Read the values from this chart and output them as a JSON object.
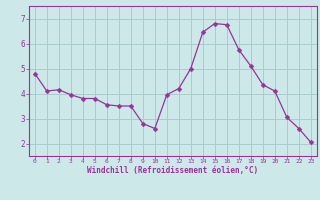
{
  "x": [
    0,
    1,
    2,
    3,
    4,
    5,
    6,
    7,
    8,
    9,
    10,
    11,
    12,
    13,
    14,
    15,
    16,
    17,
    18,
    19,
    20,
    21,
    22,
    23
  ],
  "y": [
    4.8,
    4.1,
    4.15,
    3.95,
    3.8,
    3.8,
    3.55,
    3.5,
    3.5,
    2.8,
    2.6,
    3.95,
    4.2,
    5.0,
    6.45,
    6.8,
    6.75,
    5.75,
    5.1,
    4.35,
    4.1,
    3.05,
    2.6,
    2.05
  ],
  "line_color": "#993399",
  "marker_color": "#993399",
  "bg_color": "#cce8e8",
  "grid_color": "#aacccc",
  "axis_color": "#993399",
  "tick_color": "#993399",
  "xlabel": "Windchill (Refroidissement éolien,°C)",
  "ylim": [
    1.5,
    7.5
  ],
  "xlim": [
    -0.5,
    23.5
  ],
  "yticks": [
    2,
    3,
    4,
    5,
    6,
    7
  ],
  "xticks": [
    0,
    1,
    2,
    3,
    4,
    5,
    6,
    7,
    8,
    9,
    10,
    11,
    12,
    13,
    14,
    15,
    16,
    17,
    18,
    19,
    20,
    21,
    22,
    23
  ]
}
